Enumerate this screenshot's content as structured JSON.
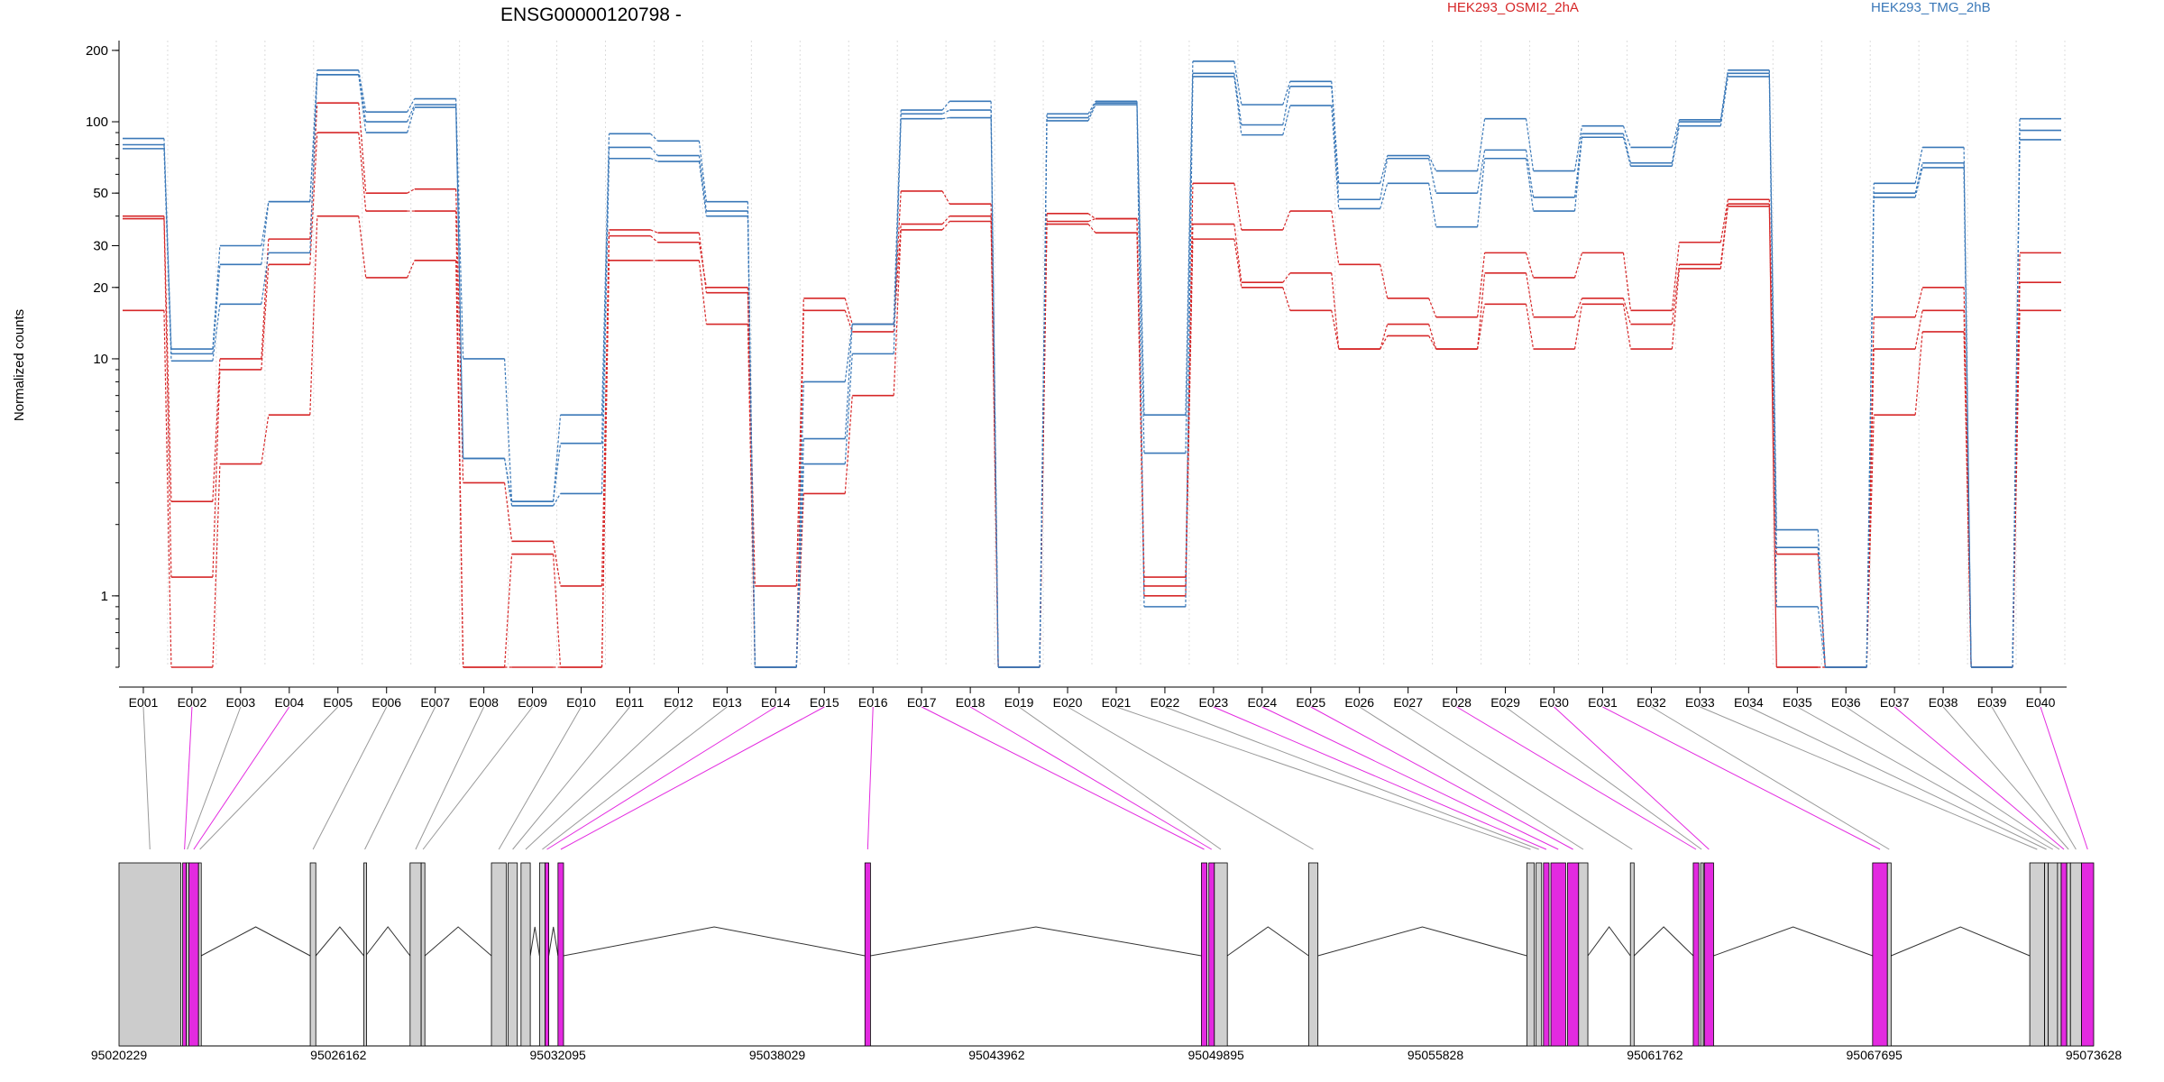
{
  "chart_data": {
    "type": "line",
    "title": "ENSG00000120798 -",
    "ylabel": "Normalized counts",
    "xlabel": "",
    "yscale": "log",
    "ylim": [
      0.5,
      220
    ],
    "y_ticks": [
      1,
      10,
      20,
      30,
      50,
      100,
      200
    ],
    "grid": "vertical dotted lines at exon boundaries",
    "legend_position": "top",
    "colors": {
      "condition_a": "#d62728",
      "condition_b": "#3a78b8",
      "alt_exon": "#e32ae0",
      "exon": "#cccccc",
      "connector": "#999999"
    },
    "legend": [
      {
        "label": "HEK293_OSMI2_2hA",
        "color": "#d62728"
      },
      {
        "label": "HEK293_TMG_2hB",
        "color": "#3a78b8"
      }
    ],
    "categories": [
      "E001",
      "E002",
      "E003",
      "E004",
      "E005",
      "E006",
      "E007",
      "E008",
      "E009",
      "E010",
      "E011",
      "E012",
      "E013",
      "E014",
      "E015",
      "E016",
      "E017",
      "E018",
      "E019",
      "E020",
      "E021",
      "E022",
      "E023",
      "E024",
      "E025",
      "E026",
      "E027",
      "E028",
      "E029",
      "E030",
      "E031",
      "E032",
      "E033",
      "E034",
      "E035",
      "E036",
      "E037",
      "E038",
      "E039",
      "E040"
    ],
    "series": [
      {
        "group": "HEK293_OSMI2_2hA",
        "color": "#d62728",
        "values": [
          40,
          2.5,
          10,
          32,
          120,
          50,
          52,
          3,
          1.7,
          1.1,
          35,
          34,
          19,
          1.1,
          18,
          14,
          51,
          45,
          0.5,
          41,
          39,
          1.2,
          55,
          35,
          42,
          25,
          18,
          15,
          28,
          22,
          28,
          16,
          31,
          47,
          1.5,
          0.5,
          15,
          20,
          0.5,
          28
        ]
      },
      {
        "group": "HEK293_OSMI2_2hA",
        "color": "#d62728",
        "values": [
          39,
          1.2,
          9,
          25,
          90,
          42,
          42,
          0.5,
          1.5,
          0.5,
          33,
          31,
          20,
          0.5,
          16,
          13,
          37,
          40,
          0.5,
          38,
          39,
          1.1,
          37,
          21,
          23,
          11,
          14,
          11,
          23,
          15,
          18,
          14,
          25,
          45,
          0.5,
          0.5,
          11,
          16,
          0.5,
          21
        ]
      },
      {
        "group": "HEK293_OSMI2_2hA",
        "color": "#d62728",
        "values": [
          16,
          0.5,
          3.6,
          5.8,
          40,
          22,
          26,
          0.5,
          0.5,
          0.5,
          26,
          26,
          14,
          0.5,
          2.7,
          7,
          35,
          38,
          0.5,
          37,
          34,
          1,
          32,
          20,
          16,
          11,
          12.5,
          11,
          17,
          11,
          17,
          11,
          24,
          44,
          0.5,
          0.5,
          5.8,
          13,
          0.5,
          16
        ]
      },
      {
        "group": "HEK293_TMG_2hB",
        "color": "#3a78b8",
        "values": [
          85,
          11,
          30,
          46,
          165,
          110,
          125,
          10,
          2.5,
          5.8,
          89,
          83,
          46,
          0.5,
          8,
          14,
          112,
          122,
          0.5,
          108,
          122,
          5.8,
          180,
          118,
          148,
          55,
          72,
          62,
          103,
          62,
          96,
          78,
          102,
          165,
          1.9,
          0.5,
          55,
          78,
          0.5,
          103
        ]
      },
      {
        "group": "HEK293_TMG_2hB",
        "color": "#3a78b8",
        "values": [
          80,
          10.5,
          25,
          46,
          158,
          100,
          118,
          3.8,
          2.5,
          4.4,
          78,
          72,
          42,
          0.5,
          4.6,
          14,
          108,
          112,
          0.5,
          104,
          120,
          4,
          160,
          97,
          141,
          47,
          70,
          50,
          76,
          48,
          89,
          67,
          100,
          160,
          1.6,
          0.5,
          50,
          67,
          0.5,
          92
        ]
      },
      {
        "group": "HEK293_TMG_2hB",
        "color": "#3a78b8",
        "values": [
          77,
          9.8,
          17,
          28,
          158,
          90,
          115,
          3.8,
          2.4,
          2.7,
          70,
          68,
          40,
          0.5,
          3.6,
          10.5,
          103,
          104,
          0.5,
          101,
          118,
          0.9,
          155,
          88,
          117,
          43,
          55,
          36,
          70,
          42,
          86,
          65,
          96,
          155,
          0.9,
          0.5,
          48,
          64,
          0.5,
          84
        ]
      }
    ],
    "exon_type": [
      "exon",
      "alt",
      "exon",
      "alt",
      "exon",
      "exon",
      "exon",
      "exon",
      "exon",
      "exon",
      "exon",
      "exon",
      "exon",
      "alt",
      "alt",
      "alt",
      "alt",
      "alt",
      "exon",
      "exon",
      "exon",
      "exon",
      "alt",
      "alt",
      "alt",
      "exon",
      "exon",
      "alt",
      "exon",
      "alt",
      "alt",
      "exon",
      "exon",
      "exon",
      "exon",
      "exon",
      "alt",
      "exon",
      "exon",
      "alt"
    ],
    "gene_coordinates": [
      "95020229",
      "95026162",
      "95032095",
      "95038029",
      "95043962",
      "95049895",
      "95055828",
      "95061762",
      "95067695",
      "95073628"
    ]
  }
}
